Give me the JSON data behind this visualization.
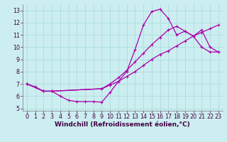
{
  "background_color": "#cceef0",
  "grid_color": "#aadddd",
  "line_color": "#aa00aa",
  "xlabel": "Windchill (Refroidissement éolien,°C)",
  "xlabel_fontsize": 6.5,
  "tick_fontsize": 5.8,
  "xlim": [
    -0.5,
    23.5
  ],
  "ylim": [
    4.8,
    13.5
  ],
  "yticks": [
    5,
    6,
    7,
    8,
    9,
    10,
    11,
    12,
    13
  ],
  "xticks": [
    0,
    1,
    2,
    3,
    4,
    5,
    6,
    7,
    8,
    9,
    10,
    11,
    12,
    13,
    14,
    15,
    16,
    17,
    18,
    19,
    20,
    21,
    22,
    23
  ],
  "curve1_x": [
    0,
    1,
    2,
    3,
    4,
    5,
    6,
    7,
    8,
    9,
    10,
    11,
    12,
    13,
    14,
    15,
    16,
    17,
    18,
    19,
    20,
    21,
    22,
    23
  ],
  "curve1_y": [
    7.0,
    6.75,
    6.4,
    6.4,
    6.0,
    5.65,
    5.55,
    5.55,
    5.55,
    5.5,
    6.3,
    7.2,
    8.0,
    9.8,
    11.8,
    12.9,
    13.1,
    12.35,
    11.0,
    11.3,
    10.9,
    10.0,
    9.6,
    9.6
  ],
  "curve2_x": [
    0,
    2,
    3,
    9,
    10,
    11,
    12,
    13,
    14,
    15,
    16,
    17,
    18,
    19,
    20,
    21,
    22,
    23
  ],
  "curve2_y": [
    7.0,
    6.4,
    6.4,
    6.6,
    7.0,
    7.5,
    8.1,
    8.8,
    9.5,
    10.2,
    10.8,
    11.4,
    11.7,
    11.3,
    10.9,
    11.4,
    10.0,
    9.6
  ],
  "curve3_x": [
    0,
    2,
    3,
    9,
    10,
    11,
    12,
    13,
    14,
    15,
    16,
    17,
    18,
    19,
    20,
    21,
    22,
    23
  ],
  "curve3_y": [
    7.0,
    6.4,
    6.4,
    6.6,
    6.9,
    7.2,
    7.6,
    8.0,
    8.5,
    9.0,
    9.4,
    9.7,
    10.1,
    10.5,
    10.9,
    11.2,
    11.5,
    11.8
  ]
}
